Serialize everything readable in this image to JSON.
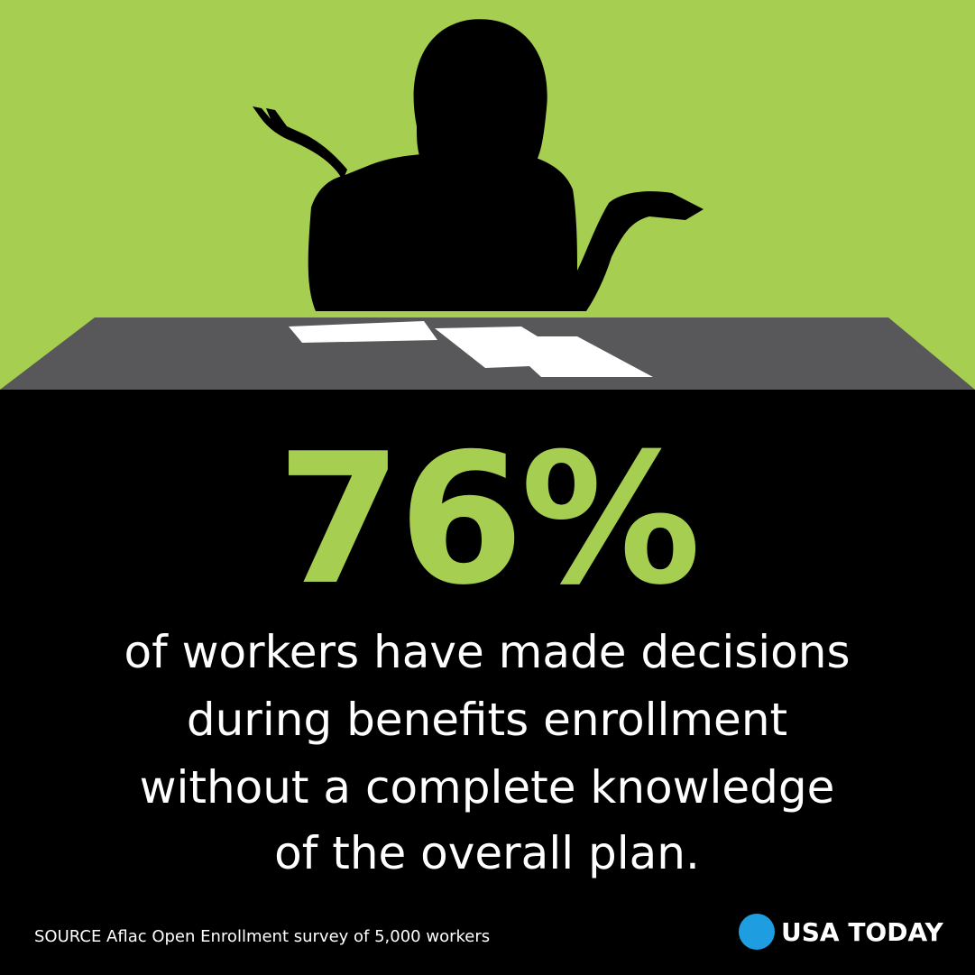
{
  "stat": "76%",
  "statement": [
    "of workers have made decisions",
    "during benefits enrollment",
    "without a complete knowledge",
    "of the overall plan."
  ],
  "source": "SOURCE Aflac Open Enrollment survey of 5,000 workers",
  "brand": "USA TODAY"
}
